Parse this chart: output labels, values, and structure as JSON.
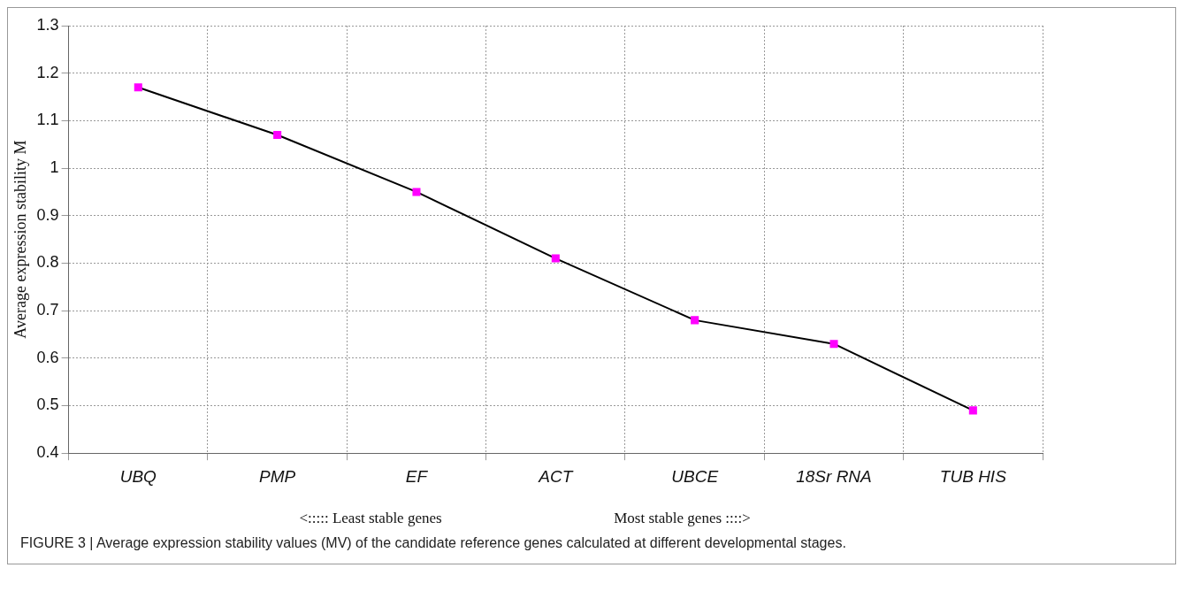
{
  "chart_data": {
    "type": "line",
    "ylabel": "Average expression stability M",
    "categories": [
      "UBQ",
      "PMP",
      "EF",
      "ACT",
      "UBCE",
      "18Sr RNA",
      "TUB HIS"
    ],
    "series": [
      {
        "color": "#000000",
        "colors": [
          "#ff00ff",
          "#ff00ff",
          "#ff00ff",
          "#ff00ff",
          "#ff00ff",
          "#ff00ff",
          "#ff00ff"
        ],
        "values": [
          1.17,
          1.07,
          0.95,
          0.81,
          0.68,
          0.63,
          0.49
        ]
      }
    ],
    "marker": "square",
    "ylim": [
      0.4,
      1.3
    ],
    "yticks": [
      0.4,
      0.5,
      0.6,
      0.7,
      0.8,
      0.9,
      1,
      1.1,
      1.2,
      1.3
    ],
    "grid": true,
    "legend": false,
    "annotations": [
      "<::::: Least stable genes",
      "Most stable genes ::::>",
      "FIGURE 3 | Average expression stability values (MV) of the candidate reference genes calculated at different developmental stages."
    ]
  }
}
